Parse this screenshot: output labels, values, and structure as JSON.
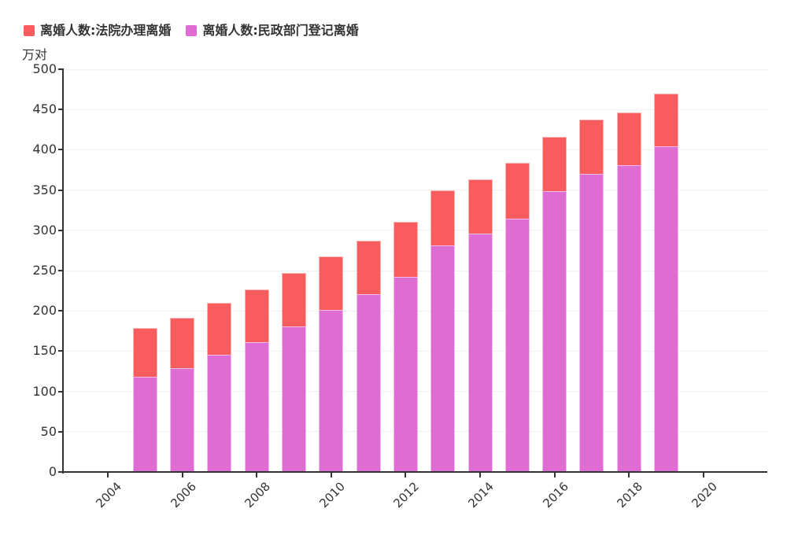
{
  "legend": {
    "items": [
      {
        "label": "离婚人数:法院办理离婚",
        "color": "#f85c5c"
      },
      {
        "label": "离婚人数:民政部门登记离婚",
        "color": "#de6cd3"
      }
    ]
  },
  "chart_data": {
    "type": "bar",
    "stacked": true,
    "title": "",
    "unit_label": "万对",
    "categories": [
      2005,
      2006,
      2007,
      2008,
      2009,
      2010,
      2011,
      2012,
      2013,
      2014,
      2015,
      2016,
      2017,
      2018,
      2019
    ],
    "series": [
      {
        "name": "离婚人数:民政部门登记离婚",
        "color": "#de6cd3",
        "stack_position": "bottom",
        "values": [
          118.5,
          129.1,
          145.9,
          161.3,
          180.2,
          201.0,
          220.7,
          242.3,
          281.5,
          295.7,
          314.9,
          348.6,
          370.4,
          381.2,
          404.7
        ]
      },
      {
        "name": "离婚人数:法院办理离婚",
        "color": "#f85c5c",
        "stack_position": "top",
        "values": [
          60.0,
          62.2,
          63.9,
          65.6,
          66.6,
          66.8,
          66.7,
          68.1,
          68.5,
          68.0,
          69.3,
          67.2,
          67.0,
          64.9,
          65.3
        ]
      }
    ],
    "totals": [
      178.5,
      191.3,
      209.8,
      226.9,
      246.8,
      267.8,
      287.4,
      310.4,
      350.0,
      363.7,
      384.1,
      415.8,
      437.4,
      446.1,
      470.0
    ],
    "x_axis": {
      "tick_years": [
        2004,
        2006,
        2008,
        2010,
        2012,
        2014,
        2016,
        2018,
        2020
      ],
      "tick_labels": [
        "2004",
        "2006",
        "2008",
        "2010",
        "2012",
        "2014",
        "2016",
        "2018",
        "2020"
      ]
    },
    "y_axis": {
      "min": 0,
      "max": 500,
      "step": 50,
      "tick_labels": [
        "0",
        "50",
        "100",
        "150",
        "200",
        "250",
        "300",
        "350",
        "400",
        "450",
        "500"
      ]
    },
    "grid": true,
    "legend_position": "top-left",
    "axis_color": "#333333",
    "grid_color": "#f0f0f0"
  }
}
